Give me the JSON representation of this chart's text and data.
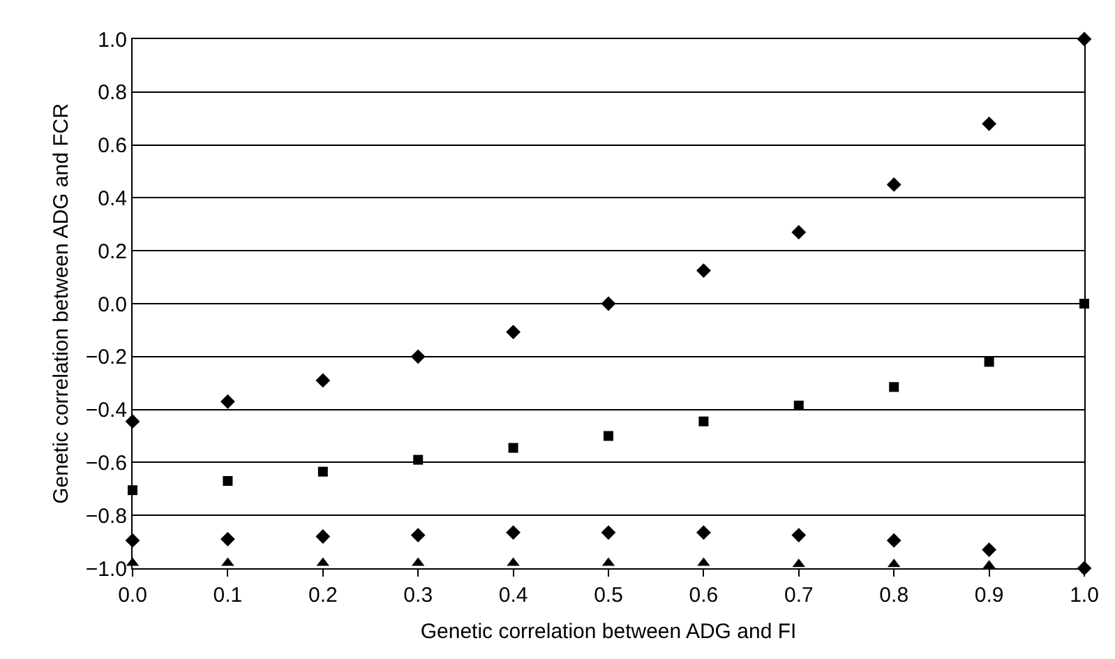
{
  "chart_data": {
    "type": "scatter",
    "xlabel": "Genetic correlation between ADG and FI",
    "ylabel": "Genetic correlation between ADG and FCR",
    "x": [
      0.0,
      0.1,
      0.2,
      0.3,
      0.4,
      0.5,
      0.6,
      0.7,
      0.8,
      0.9,
      1.0
    ],
    "series": [
      {
        "color": "#000000",
        "marker": "diamond",
        "values": [
          -0.445,
          -0.37,
          -0.29,
          -0.2,
          -0.107,
          0.0,
          0.125,
          0.27,
          0.45,
          0.68,
          1.0
        ]
      },
      {
        "color": "#000000",
        "marker": "square",
        "values": [
          -0.705,
          -0.67,
          -0.635,
          -0.59,
          -0.545,
          -0.5,
          -0.445,
          -0.385,
          -0.315,
          -0.22,
          0.0
        ]
      },
      {
        "color": "#000000",
        "marker": "diamond",
        "values": [
          -0.895,
          -0.89,
          -0.88,
          -0.875,
          -0.865,
          -0.865,
          -0.865,
          -0.875,
          -0.895,
          -0.93,
          -1.0
        ]
      },
      {
        "color": "#000000",
        "marker": "triangle",
        "values": [
          -0.98,
          -0.98,
          -0.98,
          -0.98,
          -0.98,
          -0.98,
          -0.98,
          -0.985,
          -0.985,
          -0.99,
          null
        ]
      }
    ],
    "xlim": [
      0.0,
      1.0
    ],
    "xticks": [
      {
        "value": 0.0,
        "label": "0.0"
      },
      0.1,
      0.2,
      0.3,
      0.4,
      0.5,
      0.6,
      0.7,
      0.8,
      0.9,
      {
        "value": 1.0,
        "label": "1.0"
      }
    ],
    "ylim": [
      -1.0,
      1.0
    ],
    "yticks": [
      {
        "value": -1.0,
        "label": "−1.0"
      },
      {
        "value": -0.8,
        "label": "−0.8"
      },
      {
        "value": -0.6,
        "label": "−0.6"
      },
      {
        "value": -0.4,
        "label": "−0.4"
      },
      {
        "value": -0.2,
        "label": "−0.2"
      },
      {
        "value": 0.0,
        "label": "0.0"
      },
      0.2,
      0.4,
      0.6,
      0.8,
      {
        "value": 1.0,
        "label": "1.0"
      }
    ],
    "grid": "y"
  }
}
